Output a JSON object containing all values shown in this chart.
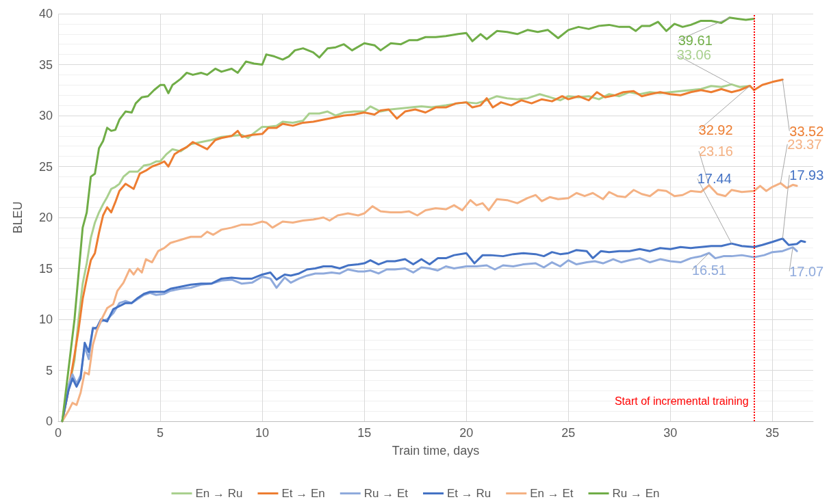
{
  "chart_data": {
    "type": "line",
    "xlabel": "Train time, days",
    "ylabel": "BLEU",
    "xlim": [
      0,
      37
    ],
    "xticks": [
      0,
      5,
      10,
      15,
      20,
      25,
      30,
      35
    ],
    "ylim": [
      0,
      40
    ],
    "yticks": [
      0,
      5,
      10,
      15,
      20,
      25,
      30,
      35,
      40
    ],
    "grid": true,
    "legend": "bottom",
    "marker": "none",
    "line_style": "solid",
    "ref_lines": [
      {
        "axis": "x",
        "value": 34.1,
        "label": "Start of incremental training",
        "color": "#ff0000",
        "line_style": "dotted"
      }
    ],
    "series": [
      {
        "name": "En → Ru",
        "color": "#a9d08e",
        "x": [
          0.2,
          0.5,
          0.8,
          1.0,
          1.2,
          1.4,
          1.6,
          1.8,
          2.0,
          2.2,
          2.4,
          2.6,
          2.8,
          3.0,
          3.2,
          3.5,
          3.9,
          4.2,
          4.5,
          4.8,
          5.0,
          5.3,
          5.6,
          6.0,
          6.5,
          7.0,
          7.5,
          8.0,
          8.5,
          9.0,
          9.3,
          9.6,
          10.0,
          10.3,
          10.7,
          11.0,
          11.5,
          12.0,
          12.3,
          12.8,
          13.2,
          13.6,
          14.0,
          14.5,
          15.0,
          15.3,
          15.8,
          16.3,
          16.8,
          17.3,
          17.8,
          18.3,
          19.0,
          19.6,
          20.0,
          20.5,
          21.0,
          21.5,
          22.0,
          22.5,
          23.0,
          23.6,
          24.1,
          24.6,
          25.0,
          25.5,
          26.0,
          26.5,
          27.0,
          27.5,
          28.0,
          28.5,
          29.0,
          29.5,
          30.0,
          30.5,
          31.0,
          31.5,
          32.0,
          32.5,
          33.0,
          33.4,
          33.9
        ],
        "values": [
          0,
          3,
          6,
          10,
          13.5,
          15.5,
          18,
          19.5,
          20.5,
          21.3,
          22,
          22.8,
          23,
          23.3,
          24,
          24.5,
          24.5,
          25.1,
          25.2,
          25.5,
          25.5,
          26.2,
          26.7,
          26.5,
          27.2,
          27.4,
          27.6,
          27.9,
          28.0,
          28.1,
          27.8,
          28.3,
          28.9,
          28.9,
          29.0,
          29.4,
          29.3,
          29.5,
          30.2,
          30.2,
          30.4,
          30.0,
          30.3,
          30.4,
          30.4,
          30.9,
          30.4,
          30.6,
          30.7,
          30.8,
          30.9,
          30.8,
          31.0,
          31.2,
          31.3,
          31.2,
          31.5,
          31.9,
          31.7,
          31.6,
          31.7,
          32.1,
          31.8,
          31.5,
          31.9,
          31.8,
          31.9,
          31.6,
          32.1,
          31.9,
          32.3,
          32.1,
          32.3,
          32.2,
          32.3,
          32.4,
          32.5,
          32.6,
          32.9,
          32.8,
          33.06,
          32.8,
          32.9
        ],
        "value_labels": [
          null,
          null,
          null,
          null,
          null,
          null,
          null,
          null,
          null,
          null,
          null,
          null,
          null,
          null,
          null,
          null,
          null,
          null,
          null,
          null,
          null,
          null,
          null,
          null,
          null,
          null,
          null,
          null,
          null,
          null,
          null,
          null,
          null,
          null,
          null,
          null,
          null,
          null,
          null,
          null,
          null,
          null,
          null,
          null,
          null,
          null,
          null,
          null,
          null,
          null,
          null,
          null,
          null,
          null,
          null,
          null,
          null,
          null,
          null,
          null,
          null,
          null,
          null,
          null,
          null,
          null,
          null,
          null,
          null,
          null,
          null,
          null,
          null,
          null,
          null,
          null,
          null,
          null,
          null,
          null,
          "33.06",
          null,
          null
        ]
      },
      {
        "name": "Et → En",
        "color": "#ed7d31",
        "x": [
          0.2,
          0.5,
          0.8,
          1.0,
          1.2,
          1.4,
          1.6,
          1.8,
          2.0,
          2.2,
          2.4,
          2.6,
          2.8,
          3.0,
          3.3,
          3.7,
          4.0,
          4.3,
          4.6,
          5.0,
          5.2,
          5.4,
          5.7,
          6.0,
          6.3,
          6.6,
          7.0,
          7.3,
          7.7,
          8.0,
          8.5,
          8.8,
          9.0,
          9.5,
          10.0,
          10.3,
          10.7,
          11.0,
          11.5,
          12.0,
          12.5,
          13.0,
          13.5,
          14.0,
          14.5,
          15.0,
          15.5,
          15.8,
          16.2,
          16.6,
          17.0,
          17.5,
          18.0,
          18.5,
          19.0,
          19.5,
          20.0,
          20.3,
          20.7,
          21.0,
          21.3,
          21.7,
          22.2,
          22.7,
          23.2,
          23.7,
          24.2,
          24.7,
          25.0,
          25.5,
          26.0,
          26.4,
          26.8,
          27.3,
          27.7,
          28.2,
          28.6,
          29.0,
          29.5,
          30.0,
          30.5,
          31.0,
          31.5,
          32.0,
          32.5,
          33.0,
          33.4,
          33.9,
          34.1,
          34.5,
          35.0,
          35.5
        ],
        "values": [
          0,
          3,
          6.5,
          9,
          12,
          14,
          15.8,
          16.5,
          18.5,
          20.2,
          21,
          20.5,
          21.5,
          22.6,
          23.3,
          22.8,
          24.3,
          24.6,
          25.0,
          25.3,
          25.5,
          25.0,
          26.2,
          26.6,
          26.9,
          27.4,
          27.0,
          26.7,
          27.6,
          27.8,
          28.0,
          28.5,
          27.9,
          28.1,
          28.2,
          28.8,
          28.8,
          29.2,
          29.0,
          29.3,
          29.4,
          29.6,
          29.8,
          30.0,
          30.1,
          30.3,
          30.1,
          30.5,
          30.6,
          29.7,
          30.4,
          30.6,
          30.3,
          30.8,
          30.8,
          31.2,
          31.3,
          30.8,
          31.0,
          31.7,
          30.8,
          31.3,
          31.0,
          31.5,
          31.2,
          31.6,
          31.4,
          31.9,
          31.6,
          31.9,
          31.5,
          32.3,
          31.8,
          32.0,
          32.3,
          32.4,
          31.9,
          32.1,
          32.3,
          32.1,
          32.0,
          32.3,
          32.5,
          32.3,
          32.6,
          32.3,
          32.5,
          32.92,
          32.5,
          33.0,
          33.3,
          33.52
        ],
        "value_labels": [
          null,
          null,
          null,
          null,
          null,
          null,
          null,
          null,
          null,
          null,
          null,
          null,
          null,
          null,
          null,
          null,
          null,
          null,
          null,
          null,
          null,
          null,
          null,
          null,
          null,
          null,
          null,
          null,
          null,
          null,
          null,
          null,
          null,
          null,
          null,
          null,
          null,
          null,
          null,
          null,
          null,
          null,
          null,
          null,
          null,
          null,
          null,
          null,
          null,
          null,
          null,
          null,
          null,
          null,
          null,
          null,
          null,
          null,
          null,
          null,
          null,
          null,
          null,
          null,
          null,
          null,
          null,
          null,
          null,
          null,
          null,
          null,
          null,
          null,
          null,
          null,
          null,
          null,
          null,
          null,
          null,
          null,
          null,
          null,
          null,
          null,
          null,
          "32.92",
          null,
          null,
          null,
          "33.52"
        ]
      },
      {
        "name": "Ru → Et",
        "color": "#8faadc",
        "x": [
          0.2,
          0.5,
          0.7,
          0.9,
          1.1,
          1.3,
          1.5,
          1.7,
          1.9,
          2.1,
          2.4,
          2.7,
          3.0,
          3.3,
          3.6,
          3.9,
          4.2,
          4.5,
          4.8,
          5.2,
          5.5,
          6.0,
          6.5,
          7.0,
          7.5,
          8.0,
          8.5,
          9.0,
          9.5,
          10.0,
          10.4,
          10.7,
          11.1,
          11.4,
          11.8,
          12.2,
          12.6,
          13.0,
          13.4,
          13.8,
          14.2,
          14.7,
          15.0,
          15.3,
          15.7,
          16.1,
          16.5,
          17.0,
          17.4,
          17.8,
          18.2,
          18.6,
          19.0,
          19.4,
          20.0,
          20.5,
          21.0,
          21.4,
          21.8,
          22.3,
          22.8,
          23.4,
          23.8,
          24.2,
          24.6,
          25.0,
          25.4,
          25.9,
          26.3,
          26.7,
          27.2,
          27.6,
          28.0,
          28.5,
          29.0,
          29.5,
          30.0,
          30.5,
          31.0,
          31.5,
          31.9,
          32.2,
          32.6,
          33.0,
          33.5,
          34.1,
          34.6,
          35.0,
          35.5,
          36.0,
          36.2
        ],
        "values": [
          0,
          3.5,
          4.6,
          3.7,
          4.5,
          7.3,
          6.1,
          9.2,
          9.0,
          9.8,
          10.0,
          10.6,
          11.6,
          11.8,
          11.6,
          12.0,
          12.4,
          12.6,
          12.4,
          12.5,
          12.8,
          13.0,
          13.1,
          13.4,
          13.5,
          13.8,
          13.9,
          13.5,
          13.6,
          14.2,
          14.0,
          13.1,
          14.1,
          13.6,
          14.0,
          14.3,
          14.5,
          14.5,
          14.6,
          14.5,
          14.9,
          14.7,
          14.7,
          14.8,
          14.5,
          14.9,
          14.9,
          15.0,
          14.6,
          15.1,
          15.0,
          14.8,
          15.2,
          15.0,
          15.2,
          15.2,
          15.3,
          14.9,
          15.3,
          15.2,
          15.4,
          15.5,
          15.1,
          15.6,
          15.2,
          15.8,
          15.4,
          15.6,
          15.7,
          15.5,
          15.9,
          15.6,
          15.8,
          16.0,
          15.6,
          15.9,
          15.7,
          15.6,
          16.0,
          16.2,
          16.51,
          16.0,
          16.2,
          16.2,
          16.3,
          16.1,
          16.3,
          16.6,
          16.7,
          17.07,
          16.7
        ],
        "value_labels": [
          null,
          null,
          null,
          null,
          null,
          null,
          null,
          null,
          null,
          null,
          null,
          null,
          null,
          null,
          null,
          null,
          null,
          null,
          null,
          null,
          null,
          null,
          null,
          null,
          null,
          null,
          null,
          null,
          null,
          null,
          null,
          null,
          null,
          null,
          null,
          null,
          null,
          null,
          null,
          null,
          null,
          null,
          null,
          null,
          null,
          null,
          null,
          null,
          null,
          null,
          null,
          null,
          null,
          null,
          null,
          null,
          null,
          null,
          null,
          null,
          null,
          null,
          null,
          null,
          null,
          null,
          null,
          null,
          null,
          null,
          null,
          null,
          null,
          null,
          null,
          null,
          null,
          null,
          null,
          null,
          "16.51",
          null,
          null,
          null,
          null,
          null,
          null,
          null,
          null,
          "17.07",
          null
        ]
      },
      {
        "name": "Et → Ru",
        "color": "#4472c4",
        "x": [
          0.2,
          0.5,
          0.7,
          0.9,
          1.1,
          1.3,
          1.5,
          1.7,
          1.9,
          2.1,
          2.4,
          2.7,
          3.0,
          3.3,
          3.6,
          3.9,
          4.2,
          4.5,
          4.8,
          5.2,
          5.5,
          6.0,
          6.5,
          7.0,
          7.5,
          8.0,
          8.5,
          9.0,
          9.5,
          10.0,
          10.4,
          10.7,
          11.1,
          11.4,
          11.8,
          12.2,
          12.6,
          13.0,
          13.4,
          13.8,
          14.2,
          14.7,
          15.0,
          15.3,
          15.7,
          16.1,
          16.5,
          17.0,
          17.4,
          17.8,
          18.2,
          18.6,
          19.0,
          19.4,
          20.0,
          20.4,
          20.8,
          21.2,
          21.8,
          22.3,
          22.8,
          23.4,
          23.8,
          24.2,
          24.6,
          25.0,
          25.4,
          25.9,
          26.2,
          26.6,
          27.0,
          27.5,
          28.0,
          28.5,
          29.0,
          29.5,
          30.0,
          30.5,
          31.0,
          31.5,
          32.0,
          32.5,
          33.0,
          33.5,
          34.1,
          34.5,
          35.0,
          35.5,
          35.8,
          36.2,
          36.4,
          36.6
        ],
        "values": [
          0,
          3,
          4.2,
          3.4,
          4.2,
          7.7,
          6.8,
          9.1,
          9.2,
          10.0,
          9.8,
          11.0,
          11.3,
          11.6,
          11.6,
          12.1,
          12.5,
          12.7,
          12.7,
          12.7,
          13.0,
          13.2,
          13.4,
          13.5,
          13.5,
          14.0,
          14.1,
          14.0,
          14.0,
          14.4,
          14.6,
          13.9,
          14.4,
          14.3,
          14.5,
          14.9,
          15.0,
          15.2,
          15.2,
          15.0,
          15.3,
          15.4,
          15.5,
          15.8,
          15.4,
          15.7,
          15.7,
          15.9,
          15.4,
          15.9,
          15.4,
          16.0,
          16.0,
          16.3,
          16.5,
          15.5,
          16.3,
          16.3,
          16.2,
          16.4,
          16.5,
          16.4,
          16.2,
          16.6,
          16.4,
          16.5,
          16.8,
          16.7,
          16.0,
          16.7,
          16.6,
          16.7,
          16.7,
          16.9,
          16.7,
          17.0,
          16.9,
          17.1,
          17.0,
          17.1,
          17.2,
          17.2,
          17.44,
          17.2,
          17.1,
          17.3,
          17.6,
          17.93,
          17.3,
          17.4,
          17.7,
          17.6
        ],
        "value_labels": [
          null,
          null,
          null,
          null,
          null,
          null,
          null,
          null,
          null,
          null,
          null,
          null,
          null,
          null,
          null,
          null,
          null,
          null,
          null,
          null,
          null,
          null,
          null,
          null,
          null,
          null,
          null,
          null,
          null,
          null,
          null,
          null,
          null,
          null,
          null,
          null,
          null,
          null,
          null,
          null,
          null,
          null,
          null,
          null,
          null,
          null,
          null,
          null,
          null,
          null,
          null,
          null,
          null,
          null,
          null,
          null,
          null,
          null,
          null,
          null,
          null,
          null,
          null,
          null,
          null,
          null,
          null,
          null,
          null,
          null,
          null,
          null,
          null,
          null,
          null,
          null,
          null,
          null,
          null,
          null,
          null,
          null,
          "17.44",
          null,
          null,
          null,
          null,
          "17.93",
          null,
          null,
          null,
          null
        ]
      },
      {
        "name": "En → Et",
        "color": "#f4b183",
        "x": [
          0.2,
          0.5,
          0.7,
          0.9,
          1.1,
          1.3,
          1.5,
          1.7,
          1.9,
          2.1,
          2.4,
          2.7,
          2.9,
          3.2,
          3.5,
          3.7,
          3.9,
          4.1,
          4.3,
          4.6,
          4.9,
          5.2,
          5.5,
          6.0,
          6.5,
          7.0,
          7.3,
          7.6,
          8.0,
          8.5,
          9.0,
          9.5,
          10.0,
          10.2,
          10.5,
          11.0,
          11.5,
          12.0,
          12.5,
          13.0,
          13.3,
          13.7,
          14.2,
          14.7,
          15.0,
          15.4,
          15.8,
          16.3,
          16.8,
          17.2,
          17.6,
          18.0,
          18.5,
          19.0,
          19.4,
          19.8,
          20.2,
          20.5,
          20.8,
          21.1,
          21.5,
          22.0,
          22.5,
          23.0,
          23.4,
          23.7,
          24.1,
          24.5,
          25.0,
          25.4,
          25.8,
          26.2,
          26.7,
          27.0,
          27.4,
          27.8,
          28.2,
          28.6,
          29.0,
          29.4,
          29.8,
          30.2,
          30.6,
          31.0,
          31.5,
          31.9,
          32.3,
          32.7,
          33.0,
          33.5,
          34.1,
          34.4,
          34.7,
          35.0,
          35.4,
          35.7,
          36.0,
          36.2
        ],
        "values": [
          0,
          1,
          1.8,
          1.6,
          2.8,
          4.8,
          4.6,
          7.5,
          8.9,
          9.9,
          11.1,
          11.5,
          12.8,
          13.6,
          14.9,
          14.4,
          15.0,
          14.6,
          15.9,
          15.6,
          16.7,
          17.0,
          17.5,
          17.8,
          18.1,
          18.1,
          18.6,
          18.3,
          18.8,
          19.0,
          19.3,
          19.3,
          19.6,
          19.5,
          19.0,
          19.6,
          19.5,
          19.7,
          19.8,
          20.0,
          19.7,
          20.2,
          20.4,
          20.2,
          20.4,
          21.1,
          20.6,
          20.5,
          20.5,
          20.6,
          20.2,
          20.7,
          20.9,
          20.8,
          21.2,
          20.7,
          21.7,
          21.2,
          21.4,
          20.7,
          21.8,
          21.7,
          21.4,
          21.9,
          22.2,
          21.6,
          22.0,
          21.8,
          21.9,
          22.4,
          22.1,
          22.4,
          21.8,
          22.5,
          22.1,
          22.0,
          22.7,
          22.3,
          22.1,
          22.7,
          22.6,
          22.1,
          22.2,
          22.6,
          22.5,
          23.16,
          22.3,
          22.1,
          22.7,
          22.5,
          22.6,
          23.1,
          22.6,
          23.0,
          23.37,
          22.9,
          23.2,
          23.1
        ],
        "value_labels": [
          null,
          null,
          null,
          null,
          null,
          null,
          null,
          null,
          null,
          null,
          null,
          null,
          null,
          null,
          null,
          null,
          null,
          null,
          null,
          null,
          null,
          null,
          null,
          null,
          null,
          null,
          null,
          null,
          null,
          null,
          null,
          null,
          null,
          null,
          null,
          null,
          null,
          null,
          null,
          null,
          null,
          null,
          null,
          null,
          null,
          null,
          null,
          null,
          null,
          null,
          null,
          null,
          null,
          null,
          null,
          null,
          null,
          null,
          null,
          null,
          null,
          null,
          null,
          null,
          null,
          null,
          null,
          null,
          null,
          null,
          null,
          null,
          null,
          null,
          null,
          null,
          null,
          null,
          null,
          null,
          null,
          null,
          null,
          null,
          null,
          "23.16",
          null,
          null,
          null,
          null,
          null,
          null,
          null,
          null,
          "23.37",
          null,
          null,
          null
        ]
      },
      {
        "name": "Ru → En",
        "color": "#70ad47",
        "x": [
          0.2,
          0.5,
          0.8,
          1.0,
          1.2,
          1.4,
          1.6,
          1.8,
          2.0,
          2.2,
          2.4,
          2.6,
          2.8,
          3.0,
          3.3,
          3.6,
          3.8,
          4.1,
          4.4,
          4.7,
          5.0,
          5.2,
          5.4,
          5.6,
          6.0,
          6.3,
          6.6,
          7.0,
          7.3,
          7.7,
          8.0,
          8.5,
          8.8,
          9.2,
          9.6,
          10.0,
          10.2,
          10.6,
          11.0,
          11.3,
          11.6,
          12.0,
          12.5,
          12.8,
          13.2,
          13.6,
          14.0,
          14.4,
          15.0,
          15.5,
          15.8,
          16.3,
          16.8,
          17.2,
          17.6,
          18.0,
          18.5,
          19.0,
          19.6,
          20.0,
          20.3,
          20.7,
          21.0,
          21.5,
          22.0,
          22.5,
          23.0,
          23.5,
          24.0,
          24.5,
          25.0,
          25.5,
          26.0,
          26.5,
          27.0,
          27.5,
          28.0,
          28.3,
          28.6,
          29.0,
          29.4,
          29.8,
          30.2,
          30.6,
          31.0,
          31.5,
          32.0,
          32.5,
          32.9,
          33.3,
          33.7,
          34.1
        ],
        "values": [
          0,
          5,
          10,
          14.5,
          19,
          20.5,
          24,
          24.3,
          26.8,
          27.5,
          28.8,
          28.5,
          28.6,
          29.6,
          30.4,
          30.3,
          31.2,
          31.8,
          31.9,
          32.5,
          33.0,
          33.0,
          32.2,
          33.0,
          33.6,
          34.2,
          34.0,
          34.2,
          34.0,
          34.6,
          34.3,
          34.6,
          34.2,
          35.3,
          35.1,
          35.0,
          36.0,
          35.8,
          35.5,
          35.8,
          36.4,
          36.6,
          36.2,
          35.7,
          36.6,
          36.7,
          37.0,
          36.4,
          37.1,
          36.9,
          36.4,
          37.1,
          37.0,
          37.4,
          37.4,
          37.7,
          37.7,
          37.8,
          38.0,
          38.1,
          37.3,
          38.0,
          37.5,
          38.3,
          38.2,
          38.0,
          38.4,
          38.2,
          38.4,
          37.6,
          38.4,
          38.7,
          38.5,
          38.8,
          38.9,
          38.7,
          38.7,
          38.3,
          38.8,
          38.8,
          39.2,
          38.3,
          39.0,
          38.7,
          38.9,
          39.3,
          39.3,
          39.1,
          39.61,
          39.5,
          39.4,
          39.5
        ],
        "value_labels": [
          null,
          null,
          null,
          null,
          null,
          null,
          null,
          null,
          null,
          null,
          null,
          null,
          null,
          null,
          null,
          null,
          null,
          null,
          null,
          null,
          null,
          null,
          null,
          null,
          null,
          null,
          null,
          null,
          null,
          null,
          null,
          null,
          null,
          null,
          null,
          null,
          null,
          null,
          null,
          null,
          null,
          null,
          null,
          null,
          null,
          null,
          null,
          null,
          null,
          null,
          null,
          null,
          null,
          null,
          null,
          null,
          null,
          null,
          null,
          null,
          null,
          null,
          null,
          null,
          null,
          null,
          null,
          null,
          null,
          null,
          null,
          null,
          null,
          null,
          null,
          null,
          null,
          null,
          null,
          null,
          null,
          null,
          null,
          null,
          null,
          null,
          null,
          null,
          "39.61",
          null,
          null,
          null
        ]
      }
    ]
  }
}
